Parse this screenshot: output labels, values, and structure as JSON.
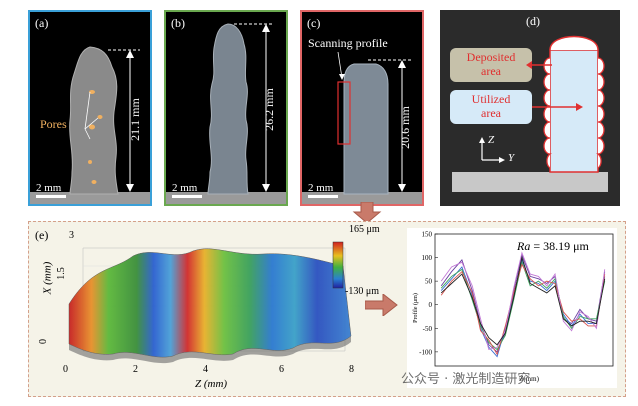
{
  "panel_a": {
    "label": "(a)",
    "pores_label": "Pores",
    "height_label": "21.1 mm",
    "scale_label": "2 mm",
    "border_color": "#3aa0d8"
  },
  "panel_b": {
    "label": "(b)",
    "height_label": "26.2 mm",
    "scale_label": "2 mm",
    "border_color": "#6aa84f"
  },
  "panel_c": {
    "label": "(c)",
    "scan_label": "Scanning profile",
    "height_label": "20.6 mm",
    "scale_label": "2 mm",
    "border_color": "#e06666"
  },
  "panel_d": {
    "label": "(d)",
    "deposited_label": "Deposited",
    "deposited_label2": "area",
    "utilized_label": "Utilized",
    "utilized_label2": "area",
    "axis_z": "Z",
    "axis_y": "Y"
  },
  "panel_e": {
    "label": "(e)",
    "surface_x_axis_label": "Z (mm)",
    "surface_y_axis_label": "X (mm)",
    "surface_x_ticks": [
      "0",
      "2",
      "4",
      "6",
      "8"
    ],
    "surface_y_ticks": [
      "0",
      "1.5",
      "3"
    ],
    "colorbar_max": "165 μm",
    "colorbar_min": "-130 μm",
    "ra_label_italic": "Ra",
    "ra_value": " = 38.19 μm",
    "profile_ylabel": "Profile (μm)",
    "profile_xlabel": "Z(mm)"
  },
  "watermark": "公众号 · 激光制造研究",
  "chart_data": {
    "type": "line",
    "title": "",
    "xlabel": "Z(mm)",
    "ylabel": "Profile (μm)",
    "xlim": [
      0,
      8.6
    ],
    "ylim": [
      -130,
      150
    ],
    "yticks": [
      -100,
      -50,
      0,
      50,
      100,
      150
    ],
    "annotation": "Ra = 38.19 μm",
    "x": [
      0.3,
      0.8,
      1.3,
      1.8,
      2.2,
      2.6,
      3.0,
      3.4,
      3.8,
      4.2,
      4.6,
      5.0,
      5.4,
      5.8,
      6.2,
      6.6,
      7.0,
      7.4,
      7.8,
      8.2
    ],
    "series": [
      {
        "color": "#6b3fa0",
        "values": [
          40,
          70,
          95,
          30,
          -40,
          -85,
          -100,
          -60,
          30,
          105,
          60,
          55,
          45,
          60,
          -30,
          -40,
          -10,
          -30,
          -35,
          70
        ]
      },
      {
        "color": "#3b6fd4",
        "values": [
          30,
          55,
          80,
          20,
          -50,
          -90,
          -110,
          -50,
          20,
          95,
          50,
          45,
          30,
          50,
          -20,
          -45,
          -20,
          -40,
          -40,
          60
        ]
      },
      {
        "color": "#3aa35c",
        "values": [
          35,
          60,
          75,
          10,
          -45,
          -80,
          -95,
          -65,
          10,
          90,
          40,
          50,
          35,
          55,
          -25,
          -50,
          -25,
          -30,
          -30,
          50
        ]
      },
      {
        "color": "#d9534f",
        "values": [
          20,
          50,
          70,
          25,
          -55,
          -75,
          -105,
          -45,
          25,
          85,
          55,
          40,
          50,
          45,
          -15,
          -35,
          -30,
          -45,
          -45,
          65
        ]
      },
      {
        "color": "#c27ad6",
        "values": [
          50,
          80,
          90,
          40,
          -30,
          -95,
          -90,
          -55,
          35,
          110,
          65,
          60,
          40,
          65,
          -35,
          -55,
          -15,
          -25,
          -50,
          75
        ]
      },
      {
        "color": "#222222",
        "values": [
          25,
          45,
          65,
          15,
          -40,
          -70,
          -85,
          -60,
          15,
          100,
          45,
          35,
          25,
          40,
          -30,
          -45,
          -35,
          -35,
          -40,
          55
        ]
      }
    ]
  }
}
